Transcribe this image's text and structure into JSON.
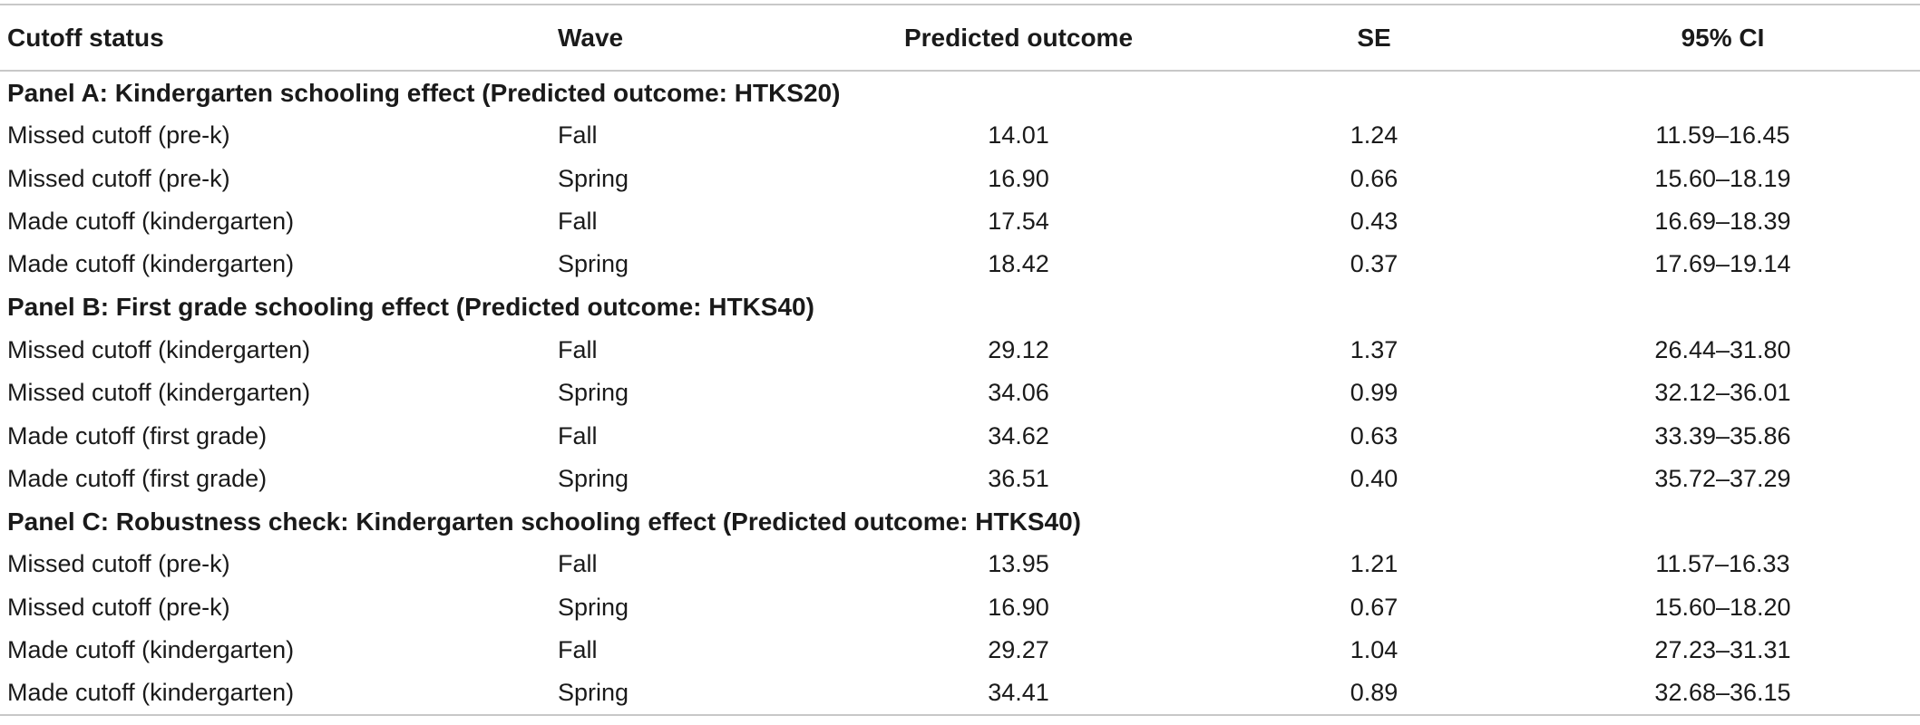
{
  "header": {
    "cutoff_status": "Cutoff status",
    "wave": "Wave",
    "predicted_outcome": "Predicted outcome",
    "se": "SE",
    "ci": "95% CI"
  },
  "panels": [
    {
      "title": "Panel A: Kindergarten schooling effect (Predicted outcome: HTKS20)",
      "rows": [
        {
          "status": "Missed cutoff (pre-k)",
          "wave": "Fall",
          "pred": "14.01",
          "se": "1.24",
          "ci": "11.59–16.45"
        },
        {
          "status": "Missed cutoff (pre-k)",
          "wave": "Spring",
          "pred": "16.90",
          "se": "0.66",
          "ci": "15.60–18.19"
        },
        {
          "status": "Made cutoff (kindergarten)",
          "wave": "Fall",
          "pred": "17.54",
          "se": "0.43",
          "ci": "16.69–18.39"
        },
        {
          "status": "Made cutoff (kindergarten)",
          "wave": "Spring",
          "pred": "18.42",
          "se": "0.37",
          "ci": "17.69–19.14"
        }
      ]
    },
    {
      "title": "Panel B: First grade schooling effect (Predicted outcome: HTKS40)",
      "rows": [
        {
          "status": "Missed cutoff (kindergarten)",
          "wave": "Fall",
          "pred": "29.12",
          "se": "1.37",
          "ci": "26.44–31.80"
        },
        {
          "status": "Missed cutoff (kindergarten)",
          "wave": "Spring",
          "pred": "34.06",
          "se": "0.99",
          "ci": "32.12–36.01"
        },
        {
          "status": "Made cutoff (first grade)",
          "wave": "Fall",
          "pred": "34.62",
          "se": "0.63",
          "ci": "33.39–35.86"
        },
        {
          "status": "Made cutoff (first grade)",
          "wave": "Spring",
          "pred": "36.51",
          "se": "0.40",
          "ci": "35.72–37.29"
        }
      ]
    },
    {
      "title": "Panel C: Robustness check: Kindergarten schooling effect (Predicted outcome: HTKS40)",
      "rows": [
        {
          "status": "Missed cutoff (pre-k)",
          "wave": "Fall",
          "pred": "13.95",
          "se": "1.21",
          "ci": "11.57–16.33"
        },
        {
          "status": "Missed cutoff (pre-k)",
          "wave": "Spring",
          "pred": "16.90",
          "se": "0.67",
          "ci": "15.60–18.20"
        },
        {
          "status": "Made cutoff (kindergarten)",
          "wave": "Fall",
          "pred": "29.27",
          "se": "1.04",
          "ci": "27.23–31.31"
        },
        {
          "status": "Made cutoff (kindergarten)",
          "wave": "Spring",
          "pred": "34.41",
          "se": "0.89",
          "ci": "32.68–36.15"
        }
      ]
    }
  ]
}
